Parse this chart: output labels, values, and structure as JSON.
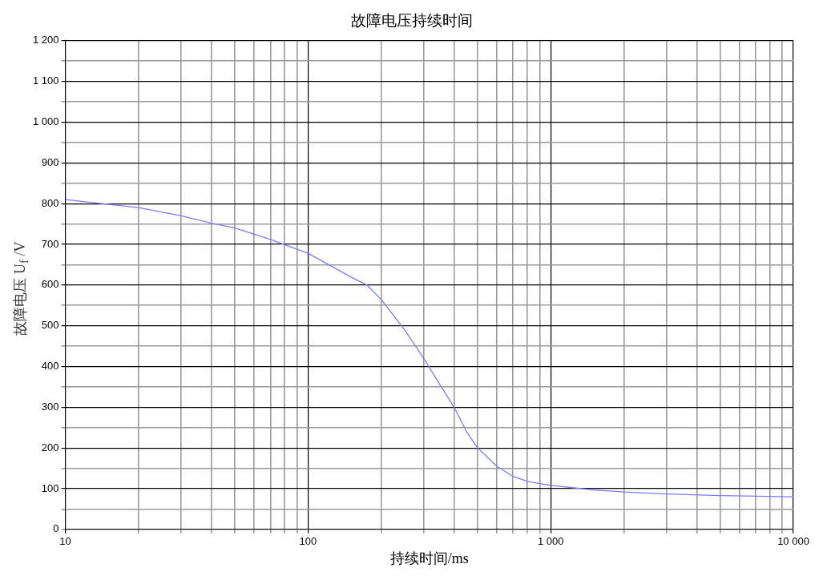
{
  "chart_data": {
    "type": "line",
    "title": "故障电压持续时间",
    "xlabel": "持续时间/ms",
    "ylabel": "故障电压 U$_{f}$ /V",
    "x": [
      10,
      20,
      30,
      40,
      50,
      70,
      100,
      150,
      175,
      200,
      250,
      300,
      350,
      400,
      450,
      500,
      600,
      700,
      800,
      1000,
      1500,
      2000,
      3000,
      5000,
      10000
    ],
    "series": [
      {
        "color": "#7b7bff",
        "values": [
          810,
          790,
          770,
          752,
          740,
          712,
          678,
          620,
          600,
          565,
          490,
          420,
          355,
          300,
          240,
          200,
          155,
          130,
          118,
          108,
          97,
          92,
          87,
          83,
          80
        ]
      }
    ],
    "log": "x",
    "xlim": [
      10,
      10000
    ],
    "ylim": [
      0,
      1200
    ],
    "xticks": [
      10,
      {
        "value": 20,
        "label": null
      },
      {
        "value": 30,
        "label": null
      },
      {
        "value": 40,
        "label": null
      },
      {
        "value": 50,
        "label": null
      },
      {
        "value": 60,
        "label": null
      },
      {
        "value": 70,
        "label": null
      },
      {
        "value": 80,
        "label": null
      },
      {
        "value": 90,
        "label": null
      },
      100,
      {
        "value": 200,
        "label": null
      },
      {
        "value": 300,
        "label": null
      },
      {
        "value": 400,
        "label": null
      },
      {
        "value": 500,
        "label": null
      },
      {
        "value": 600,
        "label": null
      },
      {
        "value": 700,
        "label": null
      },
      {
        "value": 800,
        "label": null
      },
      {
        "value": 900,
        "label": null
      },
      {
        "value": 1000,
        "label": "1 000"
      },
      {
        "value": 2000,
        "label": null
      },
      {
        "value": 3000,
        "label": null
      },
      {
        "value": 4000,
        "label": null
      },
      {
        "value": 5000,
        "label": null
      },
      {
        "value": 6000,
        "label": null
      },
      {
        "value": 7000,
        "label": null
      },
      {
        "value": 8000,
        "label": null
      },
      {
        "value": 9000,
        "label": null
      },
      {
        "value": 10000,
        "label": "10 000"
      }
    ],
    "yticks": [
      0,
      {
        "value": 50,
        "label": null
      },
      100,
      {
        "value": 150,
        "label": null
      },
      200,
      {
        "value": 250,
        "label": null
      },
      300,
      {
        "value": 350,
        "label": null
      },
      400,
      {
        "value": 450,
        "label": null
      },
      500,
      {
        "value": 550,
        "label": null
      },
      600,
      {
        "value": 650,
        "label": null
      },
      700,
      {
        "value": 750,
        "label": null
      },
      800,
      {
        "value": 850,
        "label": null
      },
      900,
      {
        "value": 950,
        "label": null
      },
      {
        "value": 1000,
        "label": "1 000"
      },
      {
        "value": 1050,
        "label": null
      },
      {
        "value": 1100,
        "label": "1 100"
      },
      {
        "value": 1150,
        "label": null
      },
      {
        "value": 1200,
        "label": "1 200"
      }
    ],
    "grid": true,
    "legend": false,
    "marker": "none",
    "line_style": "solid"
  }
}
